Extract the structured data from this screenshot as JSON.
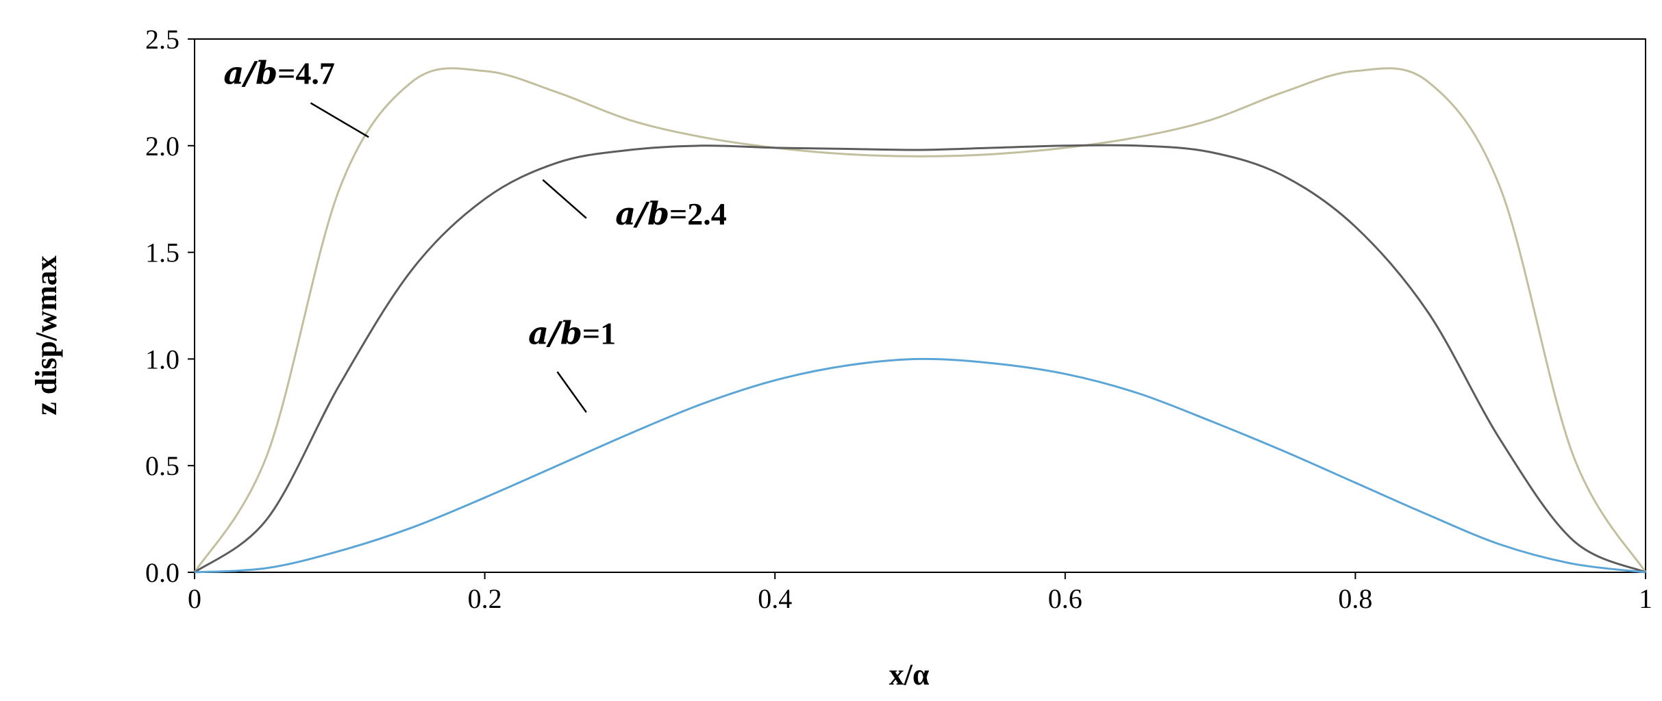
{
  "chart_data": {
    "type": "line",
    "title": "",
    "xlabel": "x/α",
    "ylabel": "z disp/wmax",
    "xlim": [
      0,
      1
    ],
    "ylim": [
      0,
      2.5
    ],
    "grid": false,
    "legend": "none",
    "x_ticks": [
      "0",
      "0.2",
      "0.4",
      "0.6",
      "0.8",
      "1"
    ],
    "y_ticks": [
      "0.0",
      "0.5",
      "1.0",
      "1.5",
      "2.0",
      "2.5"
    ],
    "x": [
      0,
      0.05,
      0.1,
      0.15,
      0.2,
      0.25,
      0.3,
      0.35,
      0.4,
      0.45,
      0.5,
      0.55,
      0.6,
      0.65,
      0.7,
      0.75,
      0.8,
      0.85,
      0.9,
      0.95,
      1
    ],
    "series": [
      {
        "color": "#c2bf9e",
        "values": [
          0,
          0.55,
          1.8,
          2.3,
          2.35,
          2.25,
          2.12,
          2.04,
          1.99,
          1.96,
          1.95,
          1.96,
          1.99,
          2.04,
          2.12,
          2.25,
          2.35,
          2.3,
          1.8,
          0.55,
          0
        ]
      },
      {
        "color": "#5c5c5c",
        "values": [
          0,
          0.25,
          0.88,
          1.42,
          1.75,
          1.92,
          1.98,
          2.0,
          1.99,
          1.985,
          1.98,
          1.99,
          2.0,
          2.0,
          1.97,
          1.86,
          1.62,
          1.22,
          0.62,
          0.15,
          0
        ]
      },
      {
        "color": "#5aa5d6",
        "values": [
          0,
          0.02,
          0.1,
          0.21,
          0.35,
          0.5,
          0.65,
          0.79,
          0.9,
          0.97,
          1.0,
          0.98,
          0.93,
          0.84,
          0.71,
          0.57,
          0.42,
          0.27,
          0.13,
          0.04,
          0
        ]
      }
    ],
    "annotations": [
      {
        "italic": "a/b",
        "rest": "=4.7",
        "x": 0.02,
        "y": 2.29,
        "line_from": [
          0.08,
          2.2
        ],
        "line_to": [
          0.12,
          2.04
        ]
      },
      {
        "italic": "a/b",
        "rest": "=2.4",
        "x": 0.29,
        "y": 1.63,
        "line_from": [
          0.24,
          1.84
        ],
        "line_to": [
          0.27,
          1.66
        ]
      },
      {
        "italic": "a/b",
        "rest": "=1",
        "x": 0.23,
        "y": 1.07,
        "line_from": [
          0.25,
          0.94
        ],
        "line_to": [
          0.27,
          0.75
        ]
      }
    ]
  }
}
